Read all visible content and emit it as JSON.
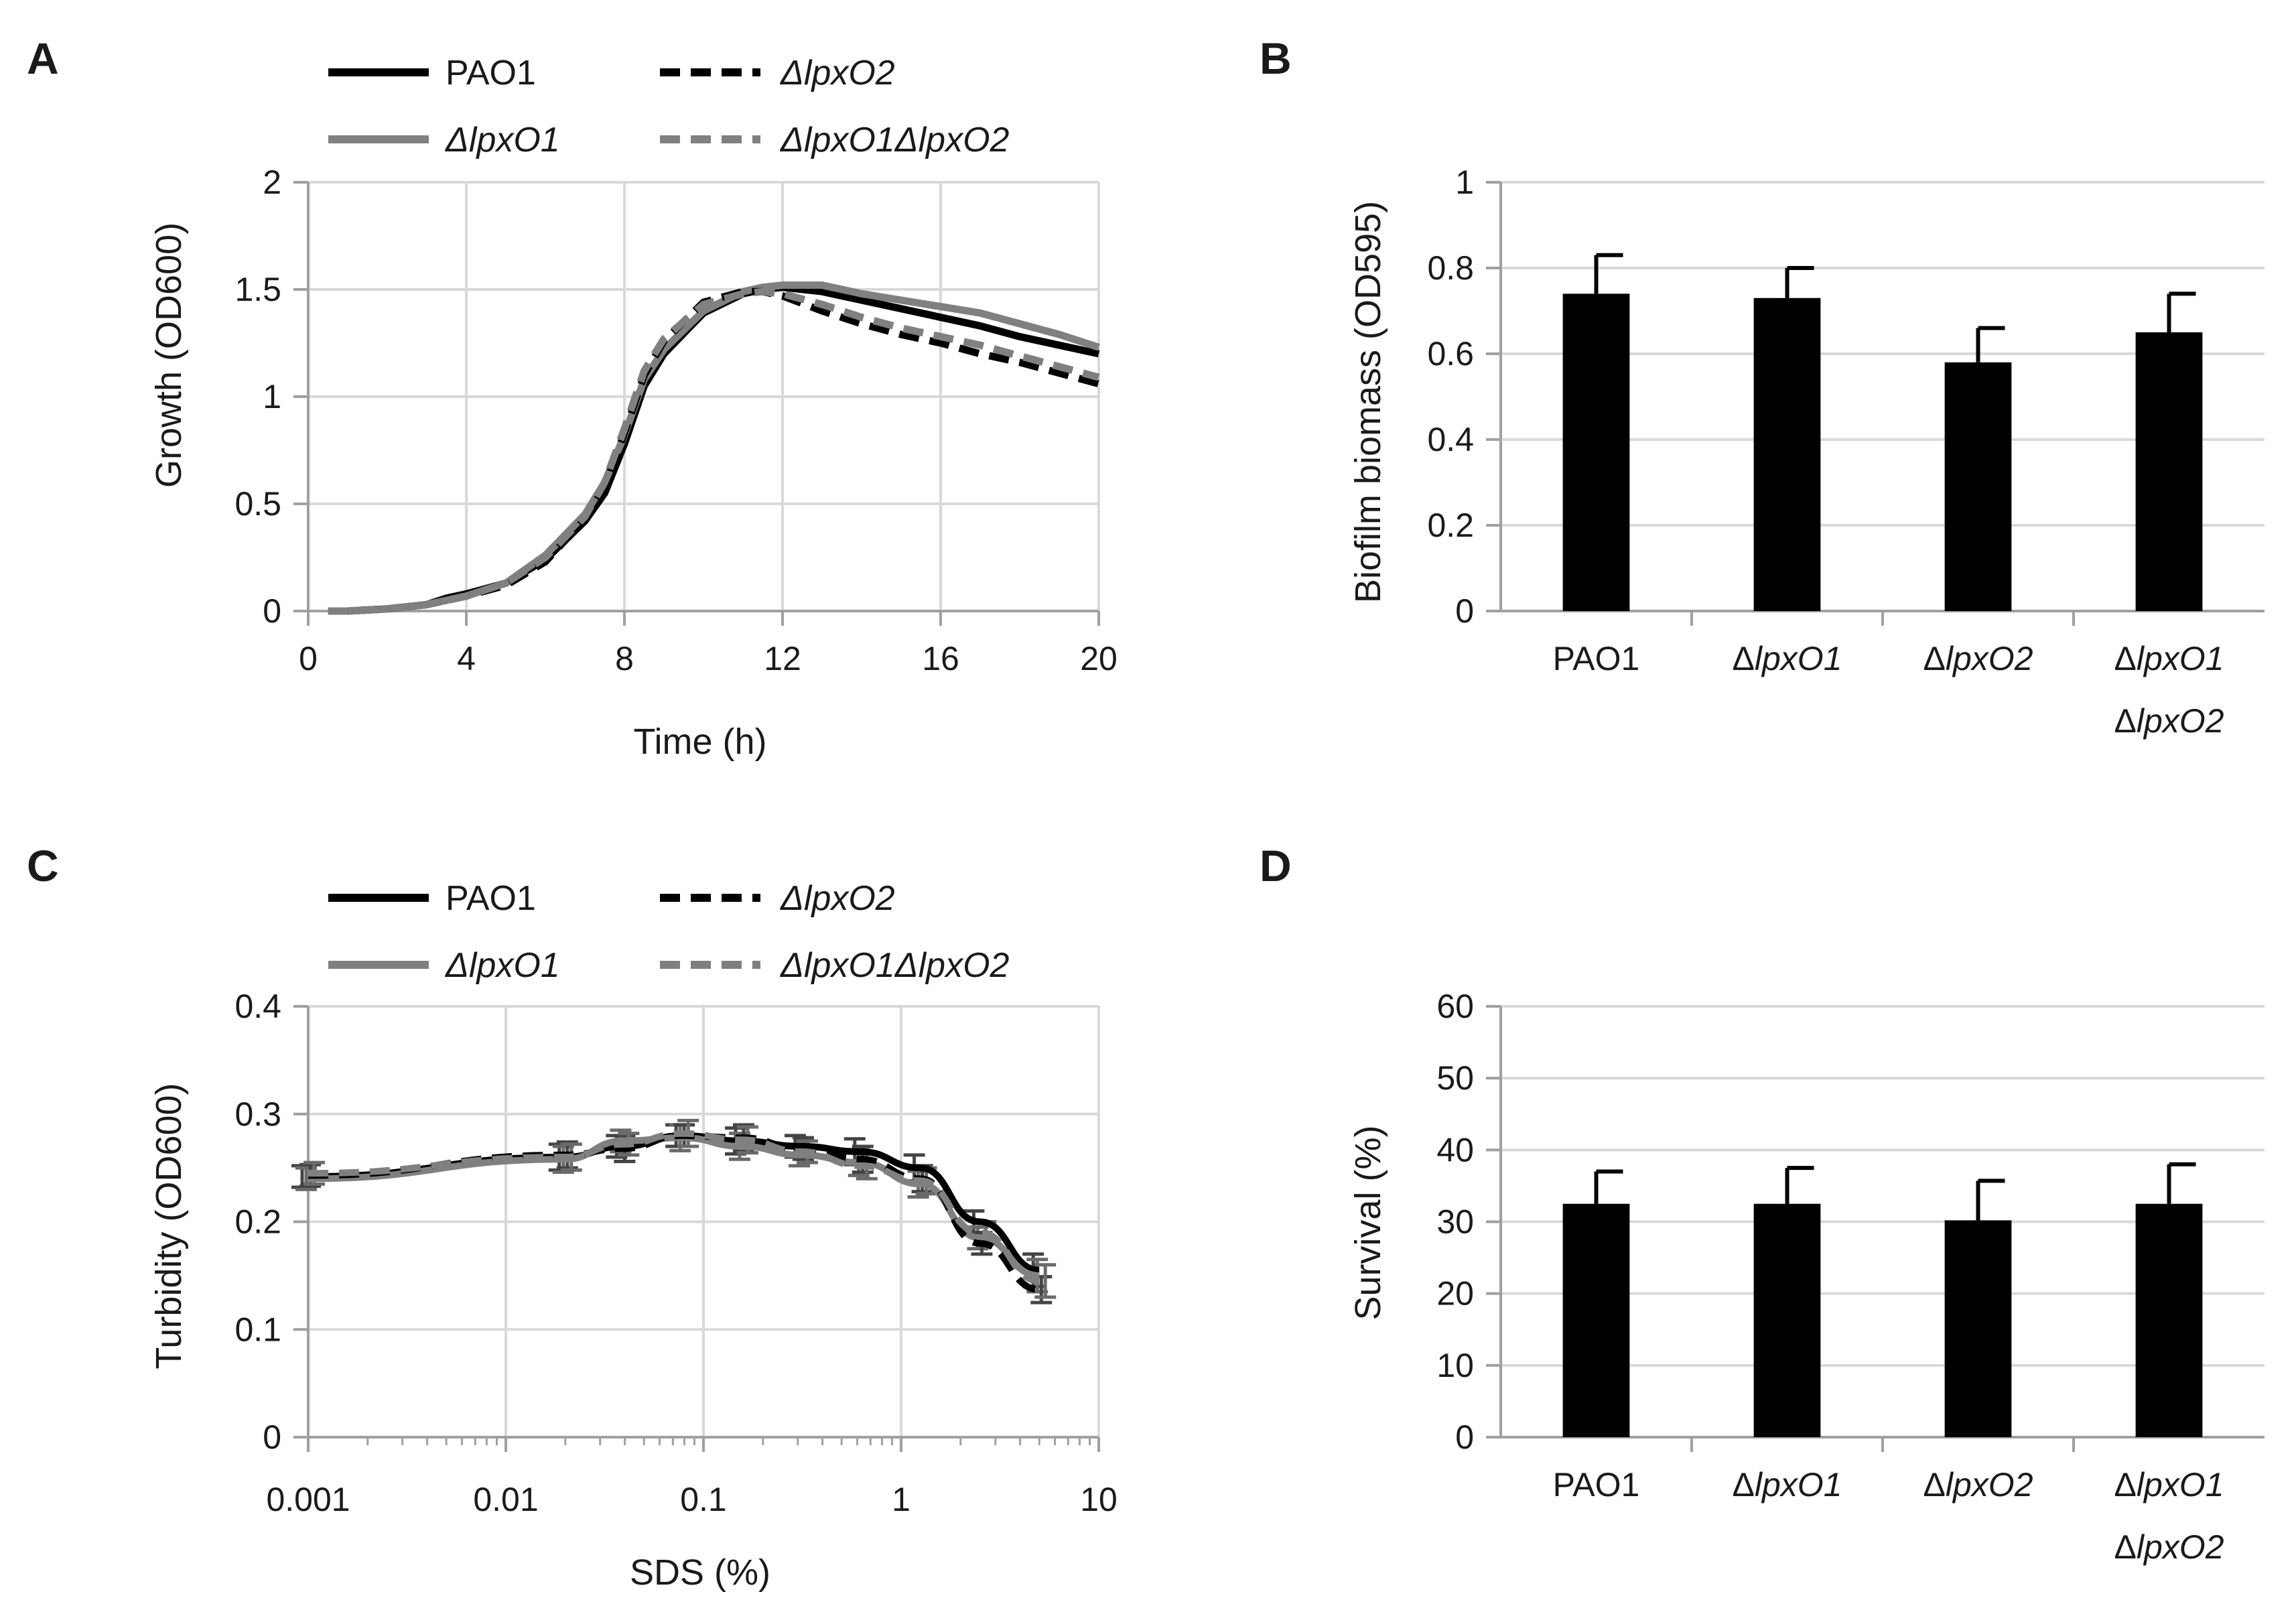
{
  "panels": {
    "A": {
      "label": "A"
    },
    "B": {
      "label": "B"
    },
    "C": {
      "label": "C"
    },
    "D": {
      "label": "D"
    }
  },
  "legend": {
    "PAO1": "PAO1",
    "dlpxO1": "ΔlpxO1",
    "dlpxO2": "ΔlpxO2",
    "dlpxO1dlpxO2": "ΔlpxO1ΔlpxO2"
  },
  "chart_data": [
    {
      "panel": "A",
      "type": "line",
      "title": "",
      "xlabel": "Time (h)",
      "ylabel": "Growth (OD600)",
      "xlim": [
        0,
        20
      ],
      "ylim": [
        0,
        2
      ],
      "xticks": [
        "0",
        "4",
        "8",
        "12",
        "16",
        "20"
      ],
      "yticks": [
        "0",
        "0.5",
        "1",
        "1.5",
        "2"
      ],
      "grid": true,
      "legend_position": "top",
      "series": [
        {
          "name": "PAO1",
          "color": "#000000",
          "dash": false,
          "x": [
            0.5,
            1,
            2,
            3,
            3.5,
            4,
            5,
            6,
            7,
            7.5,
            8,
            8.5,
            9,
            10,
            11,
            11.5,
            12,
            13,
            14,
            15,
            16,
            17,
            18,
            19,
            20
          ],
          "y": [
            0,
            0,
            0.01,
            0.03,
            0.06,
            0.08,
            0.13,
            0.24,
            0.42,
            0.55,
            0.78,
            1.05,
            1.2,
            1.39,
            1.48,
            1.5,
            1.51,
            1.49,
            1.45,
            1.41,
            1.37,
            1.33,
            1.28,
            1.24,
            1.2
          ]
        },
        {
          "name": "ΔlpxO1",
          "color": "#808080",
          "dash": false,
          "x": [
            0.5,
            1,
            2,
            3,
            3.5,
            4,
            5,
            6,
            7,
            7.5,
            8,
            8.5,
            9,
            10,
            11,
            11.5,
            12,
            13,
            14,
            15,
            16,
            17,
            18,
            19,
            20
          ],
          "y": [
            0,
            0,
            0.01,
            0.03,
            0.05,
            0.07,
            0.13,
            0.26,
            0.45,
            0.6,
            0.82,
            1.08,
            1.22,
            1.4,
            1.49,
            1.51,
            1.52,
            1.52,
            1.48,
            1.45,
            1.42,
            1.39,
            1.34,
            1.29,
            1.23
          ]
        },
        {
          "name": "ΔlpxO2",
          "color": "#000000",
          "dash": true,
          "x": [
            0.5,
            1,
            2,
            3,
            3.5,
            4,
            5,
            6,
            7,
            7.5,
            8,
            8.5,
            9,
            10,
            11,
            11.5,
            12,
            13,
            14,
            15,
            16,
            17,
            18,
            19,
            20
          ],
          "y": [
            0,
            0,
            0.01,
            0.03,
            0.05,
            0.07,
            0.12,
            0.23,
            0.43,
            0.58,
            0.83,
            1.1,
            1.26,
            1.44,
            1.49,
            1.49,
            1.47,
            1.4,
            1.34,
            1.29,
            1.25,
            1.2,
            1.16,
            1.11,
            1.06
          ]
        },
        {
          "name": "ΔlpxO1ΔlpxO2",
          "color": "#808080",
          "dash": true,
          "x": [
            0.5,
            1,
            2,
            3,
            3.5,
            4,
            5,
            6,
            7,
            7.5,
            8,
            8.5,
            9,
            10,
            11,
            11.5,
            12,
            13,
            14,
            15,
            16,
            17,
            18,
            19,
            20
          ],
          "y": [
            0,
            0,
            0.01,
            0.03,
            0.05,
            0.07,
            0.13,
            0.25,
            0.44,
            0.6,
            0.85,
            1.12,
            1.27,
            1.43,
            1.48,
            1.49,
            1.48,
            1.43,
            1.37,
            1.32,
            1.28,
            1.24,
            1.19,
            1.14,
            1.09
          ]
        }
      ]
    },
    {
      "panel": "B",
      "type": "bar",
      "title": "",
      "xlabel": "",
      "ylabel": "Biofilm biomass (OD595)",
      "ylim": [
        0,
        1
      ],
      "yticks": [
        "0",
        "0.2",
        "0.4",
        "0.6",
        "0.8",
        "1"
      ],
      "grid": true,
      "categories": [
        "PAO1",
        "ΔlpxO1",
        "ΔlpxO2",
        "ΔlpxO1 ΔlpxO2"
      ],
      "values": [
        0.74,
        0.73,
        0.58,
        0.65
      ],
      "errors": [
        0.09,
        0.07,
        0.08,
        0.09
      ],
      "bar_color": "#000000"
    },
    {
      "panel": "C",
      "type": "line",
      "title": "",
      "xlabel": "SDS (%)",
      "ylabel": "Turbidity (OD600)",
      "xscale": "log",
      "xlim": [
        0.001,
        10
      ],
      "ylim": [
        0,
        0.4
      ],
      "xticks": [
        "0.001",
        "0.01",
        "0.1",
        "1",
        "10"
      ],
      "yticks": [
        "0",
        "0.1",
        "0.2",
        "0.3",
        "0.4"
      ],
      "grid": true,
      "legend_position": "top",
      "x": [
        0.001,
        0.02,
        0.039,
        0.078,
        0.156,
        0.3125,
        0.625,
        1.25,
        2.5,
        5
      ],
      "series": [
        {
          "name": "PAO1",
          "color": "#000000",
          "dash": false,
          "y": [
            0.242,
            0.26,
            0.27,
            0.28,
            0.275,
            0.27,
            0.265,
            0.25,
            0.2,
            0.155
          ],
          "err": [
            0.01,
            0.012,
            0.01,
            0.01,
            0.012,
            0.01,
            0.012,
            0.012,
            0.01,
            0.015
          ]
        },
        {
          "name": "ΔlpxO1",
          "color": "#808080",
          "dash": false,
          "y": [
            0.24,
            0.258,
            0.275,
            0.278,
            0.27,
            0.262,
            0.255,
            0.235,
            0.185,
            0.15
          ],
          "err": [
            0.01,
            0.012,
            0.01,
            0.012,
            0.012,
            0.01,
            0.012,
            0.012,
            0.01,
            0.015
          ]
        },
        {
          "name": "ΔlpxO2",
          "color": "#000000",
          "dash": true,
          "y": [
            0.243,
            0.262,
            0.268,
            0.28,
            0.278,
            0.268,
            0.258,
            0.24,
            0.18,
            0.137
          ],
          "err": [
            0.01,
            0.012,
            0.012,
            0.01,
            0.012,
            0.01,
            0.012,
            0.012,
            0.01,
            0.012
          ]
        },
        {
          "name": "ΔlpxO1ΔlpxO2",
          "color": "#808080",
          "dash": true,
          "y": [
            0.245,
            0.26,
            0.272,
            0.282,
            0.276,
            0.265,
            0.252,
            0.238,
            0.19,
            0.145
          ],
          "err": [
            0.01,
            0.012,
            0.01,
            0.012,
            0.012,
            0.01,
            0.012,
            0.012,
            0.01,
            0.015
          ]
        }
      ]
    },
    {
      "panel": "D",
      "type": "bar",
      "title": "",
      "xlabel": "",
      "ylabel": "Survival (%)",
      "ylim": [
        0,
        60
      ],
      "yticks": [
        "0",
        "10",
        "20",
        "30",
        "40",
        "50",
        "60"
      ],
      "grid": true,
      "categories": [
        "PAO1",
        "ΔlpxO1",
        "ΔlpxO2",
        "ΔlpxO1 ΔlpxO2"
      ],
      "values": [
        32.5,
        32.5,
        30.2,
        32.5
      ],
      "errors": [
        4.5,
        5.0,
        5.5,
        5.5
      ],
      "bar_color": "#000000"
    }
  ]
}
